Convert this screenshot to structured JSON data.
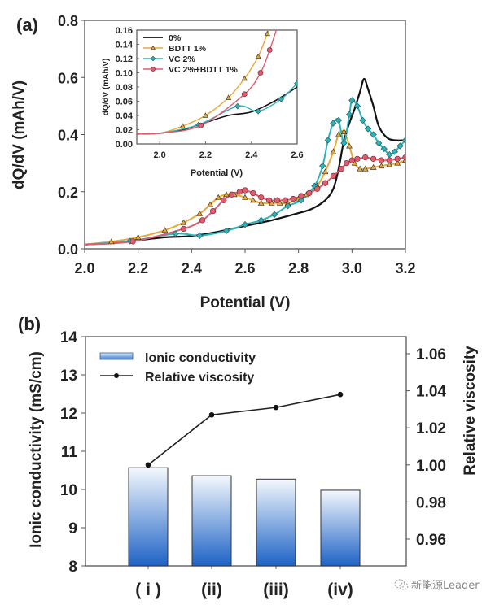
{
  "chart_data": [
    {
      "id": "a",
      "type": "line",
      "panel_label": "(a)",
      "title": "",
      "xlabel": "Potential (V)",
      "ylabel": "dQ/dV (mAh/V)",
      "xlim": [
        2.0,
        3.2
      ],
      "ylim": [
        0.0,
        0.8
      ],
      "xticks": [
        "2.0",
        "2.2",
        "2.4",
        "2.6",
        "2.8",
        "3.0",
        "3.2"
      ],
      "yticks": [
        "0.0",
        "0.2",
        "0.4",
        "0.6",
        "0.8"
      ],
      "series": [
        {
          "name": "0%",
          "color": "#111111",
          "marker": "none",
          "x": [
            2.0,
            2.1,
            2.2,
            2.3,
            2.4,
            2.5,
            2.6,
            2.7,
            2.8,
            2.85,
            2.9,
            2.93,
            2.95,
            2.97,
            2.99,
            3.01,
            3.03,
            3.045,
            3.06,
            3.08,
            3.1,
            3.13,
            3.16,
            3.2
          ],
          "y": [
            0.015,
            0.02,
            0.03,
            0.04,
            0.045,
            0.06,
            0.08,
            0.1,
            0.125,
            0.14,
            0.17,
            0.21,
            0.28,
            0.38,
            0.44,
            0.49,
            0.55,
            0.595,
            0.56,
            0.5,
            0.43,
            0.39,
            0.38,
            0.38
          ]
        },
        {
          "name": "BDTT 1%",
          "color": "#E8A93A",
          "marker": "triangle",
          "x": [
            2.0,
            2.1,
            2.2,
            2.3,
            2.37,
            2.43,
            2.47,
            2.5,
            2.53,
            2.56,
            2.6,
            2.63,
            2.66,
            2.7,
            2.73,
            2.76,
            2.8,
            2.83,
            2.87,
            2.9,
            2.93,
            2.95,
            2.97,
            2.99,
            3.01,
            3.03,
            3.05,
            3.08,
            3.11,
            3.14,
            3.17,
            3.2
          ],
          "y": [
            0.015,
            0.025,
            0.04,
            0.065,
            0.092,
            0.123,
            0.155,
            0.18,
            0.19,
            0.19,
            0.18,
            0.17,
            0.16,
            0.16,
            0.16,
            0.16,
            0.175,
            0.19,
            0.22,
            0.27,
            0.34,
            0.4,
            0.41,
            0.36,
            0.3,
            0.28,
            0.28,
            0.285,
            0.29,
            0.295,
            0.3,
            0.31
          ]
        },
        {
          "name": "VC 2%",
          "color": "#2BB5BA",
          "marker": "diamond",
          "x": [
            2.0,
            2.17,
            2.34,
            2.43,
            2.53,
            2.6,
            2.66,
            2.71,
            2.76,
            2.81,
            2.86,
            2.89,
            2.91,
            2.93,
            2.95,
            2.97,
            2.99,
            3.0,
            3.02,
            3.04,
            3.06,
            3.08,
            3.1,
            3.12,
            3.14,
            3.16,
            3.18,
            3.2
          ],
          "y": [
            0.015,
            0.027,
            0.053,
            0.046,
            0.063,
            0.085,
            0.1,
            0.12,
            0.15,
            0.17,
            0.22,
            0.29,
            0.38,
            0.44,
            0.45,
            0.37,
            0.47,
            0.52,
            0.5,
            0.45,
            0.42,
            0.4,
            0.37,
            0.35,
            0.33,
            0.34,
            0.36,
            0.38
          ]
        },
        {
          "name": "VC 2%+BDTT 1%",
          "color": "#E05C6F",
          "marker": "circle",
          "x": [
            2.0,
            2.18,
            2.37,
            2.44,
            2.48,
            2.52,
            2.55,
            2.58,
            2.6,
            2.63,
            2.66,
            2.69,
            2.72,
            2.75,
            2.78,
            2.81,
            2.84,
            2.87,
            2.9,
            2.93,
            2.96,
            2.98,
            3.0,
            3.02,
            3.05,
            3.08,
            3.11,
            3.14,
            3.17,
            3.2
          ],
          "y": [
            0.015,
            0.026,
            0.07,
            0.1,
            0.132,
            0.17,
            0.19,
            0.2,
            0.205,
            0.195,
            0.18,
            0.17,
            0.17,
            0.17,
            0.175,
            0.185,
            0.195,
            0.21,
            0.23,
            0.255,
            0.28,
            0.3,
            0.31,
            0.315,
            0.32,
            0.315,
            0.31,
            0.31,
            0.315,
            0.32
          ]
        }
      ],
      "inset": {
        "xlabel": "Potential (V)",
        "ylabel": "dQ/dV (mAh/V)",
        "xlim": [
          1.9,
          2.6
        ],
        "ylim": [
          0.0,
          0.16
        ],
        "xticks": [
          "2.0",
          "2.2",
          "2.4",
          "2.6"
        ],
        "yticks": [
          "0.00",
          "0.02",
          "0.04",
          "0.06",
          "0.08",
          "0.10",
          "0.12",
          "0.14",
          "0.16"
        ],
        "legend": {
          "position": "top-left",
          "entries": [
            "0%",
            "BDTT 1%",
            "VC 2%",
            "VC 2%+BDTT 1%"
          ]
        }
      }
    },
    {
      "id": "b",
      "type": "bar",
      "panel_label": "(b)",
      "title": "",
      "categories": [
        "( i )",
        "(ii)",
        "(iii)",
        "(iv)"
      ],
      "xlabel": "",
      "ylabel": "Ionic conductivity (mS/cm)",
      "ylim": [
        8,
        14
      ],
      "yticks": [
        "8",
        "9",
        "10",
        "11",
        "12",
        "13",
        "14"
      ],
      "y2label": "Relative viscosity",
      "y2lim": [
        0.945,
        1.07
      ],
      "y2ticks": [
        "0.96",
        "0.98",
        "1.00",
        "1.02",
        "1.04",
        "1.06"
      ],
      "legend": {
        "position": "top-left",
        "entries": [
          "Ionic conductivity",
          "Relative viscosity"
        ]
      },
      "series": [
        {
          "name": "Ionic conductivity",
          "type": "bar",
          "axis": "left",
          "color": "#1E63C6",
          "values": [
            10.57,
            10.36,
            10.27,
            9.98
          ]
        },
        {
          "name": "Relative viscosity",
          "type": "line",
          "axis": "right",
          "color": "#111111",
          "values": [
            1.0,
            1.027,
            1.031,
            1.038
          ]
        }
      ]
    }
  ],
  "watermark": {
    "text": "新能源Leader",
    "icon": "wechat-icon"
  }
}
